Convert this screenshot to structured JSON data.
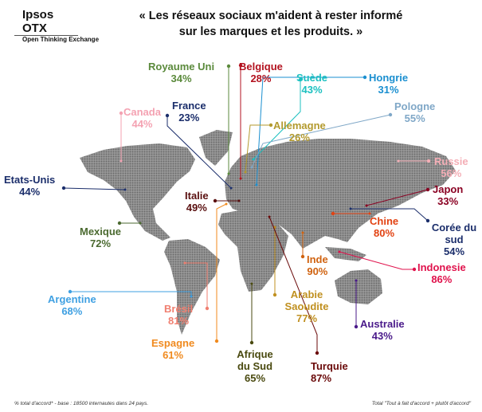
{
  "logo": {
    "name": "Ipsos OTX",
    "tagline": "Open Thinking Exchange"
  },
  "title_line1": "« Les réseaux sociaux m'aident à rester informé",
  "title_line2": "sur les marques et les produits.  »",
  "footer_left": "% total d'accord* - base : 18500 internautes dans 24 pays.",
  "footer_right": "Total \"Tout à fait d'accord + plutôt d'accord\"",
  "map_color": "#8a8a8a",
  "countries": [
    {
      "name": "Royaume Uni",
      "value": "34%",
      "color": "#5b8a3c"
    },
    {
      "name": "Belgique",
      "value": "28%",
      "color": "#b3121f"
    },
    {
      "name": "Suède",
      "value": "43%",
      "color": "#1cc0c0"
    },
    {
      "name": "Hongrie",
      "value": "31%",
      "color": "#1a8fd0"
    },
    {
      "name": "Pologne",
      "value": "55%",
      "color": "#7fa7c7"
    },
    {
      "name": "Allemagne",
      "value": "26%",
      "color": "#b39a2e"
    },
    {
      "name": "Canada",
      "value": "44%",
      "color": "#f4a2b2"
    },
    {
      "name": "France",
      "value": "23%",
      "color": "#1b2e6b"
    },
    {
      "name": "Russie",
      "value": "56%",
      "color": "#f4aeb6"
    },
    {
      "name": "Etats-Unis",
      "value": "44%",
      "color": "#1b2e6b"
    },
    {
      "name": "Italie",
      "value": "49%",
      "color": "#5a1010"
    },
    {
      "name": "Japon",
      "value": "33%",
      "color": "#8a0022"
    },
    {
      "name": "Chine",
      "value": "80%",
      "color": "#e24212"
    },
    {
      "name": "Corée du sud",
      "value": "54%",
      "color": "#1b2e6b"
    },
    {
      "name": "Mexique",
      "value": "72%",
      "color": "#4b6a30"
    },
    {
      "name": "Inde",
      "value": "90%",
      "color": "#d0620f"
    },
    {
      "name": "Indonesie",
      "value": "86%",
      "color": "#e0124c"
    },
    {
      "name": "Arabie Saoudite",
      "value": "77%",
      "color": "#c09020"
    },
    {
      "name": "Argentine",
      "value": "68%",
      "color": "#3fa0e2"
    },
    {
      "name": "Brésil",
      "value": "81%",
      "color": "#f07f70"
    },
    {
      "name": "Australie",
      "value": "43%",
      "color": "#4a1a8a"
    },
    {
      "name": "Espagne",
      "value": "61%",
      "color": "#f08a1e"
    },
    {
      "name": "Afrique du Sud",
      "value": "65%",
      "color": "#4a4a10"
    },
    {
      "name": "Turquie",
      "value": "87%",
      "color": "#6a0a0a"
    }
  ]
}
